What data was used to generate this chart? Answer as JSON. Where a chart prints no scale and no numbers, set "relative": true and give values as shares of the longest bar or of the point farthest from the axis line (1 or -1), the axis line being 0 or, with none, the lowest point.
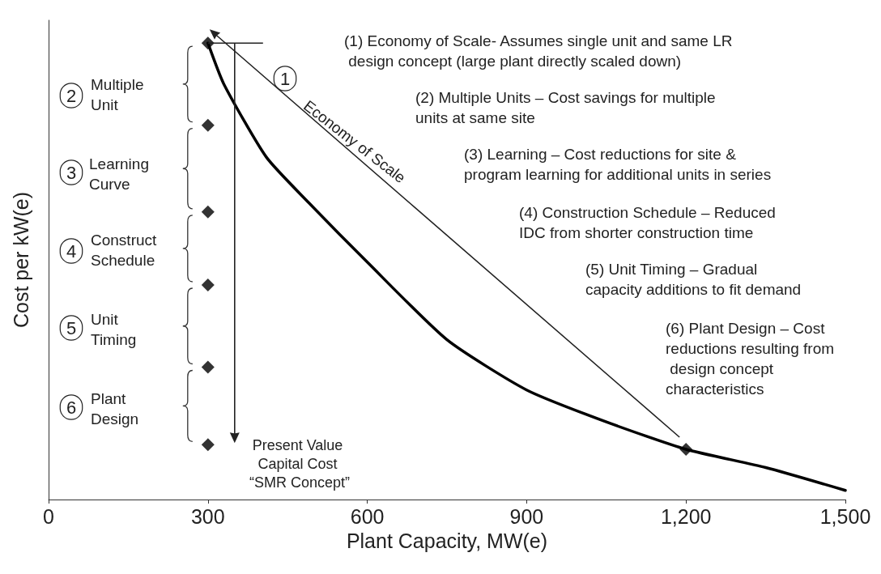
{
  "chart_data": {
    "type": "line",
    "relative": true,
    "xlabel": "Plant Capacity, MW(e)",
    "ylabel": "Cost per kW(e)",
    "xlim": [
      0,
      1500
    ],
    "xticks": [
      0,
      300,
      600,
      900,
      {
        "value": 1200,
        "label": "1,200"
      },
      {
        "value": 1500,
        "label": "1,500"
      }
    ],
    "tick_labels": "x",
    "grid": false,
    "series": [
      {
        "color": "#000000",
        "marker": "none",
        "x": [
          300,
          330,
          410,
          490,
          600,
          750,
          900,
          1050,
          1200,
          1350,
          1500
        ],
        "values": [
          1.0,
          0.91,
          0.75,
          0.65,
          0.52,
          0.35,
          0.24,
          0.17,
          0.11,
          0.07,
          0.02
        ]
      },
      {
        "type": "scatter",
        "color": "#000000",
        "marker": "diamond",
        "x": [
          300,
          300,
          300,
          300,
          300,
          300,
          1200
        ],
        "values": [
          1.0,
          0.82,
          0.63,
          0.47,
          0.29,
          0.12,
          0.11
        ]
      }
    ],
    "annotations": [
      "(1) Economy of Scale- Assumes single unit and same LR design concept (large plant directly scaled down)",
      "(2) Multiple Units – Cost savings for multiple units at same site",
      "(3) Learning – Cost reductions for site & program learning for additional units in series",
      "(4) Construction Schedule – Reduced IDC from shorter construction time",
      "(5) Unit Timing – Gradual capacity additions to fit demand",
      "(6) Plant Design – Cost reductions resulting from design concept characteristics",
      "1",
      "Economy of Scale",
      "2",
      "Multiple Unit",
      "3",
      "Learning Curve",
      "4",
      "Construct Schedule",
      "5",
      "Unit Timing",
      "6",
      "Plant Design",
      "Present Value Capital Cost “SMR Concept”"
    ]
  }
}
